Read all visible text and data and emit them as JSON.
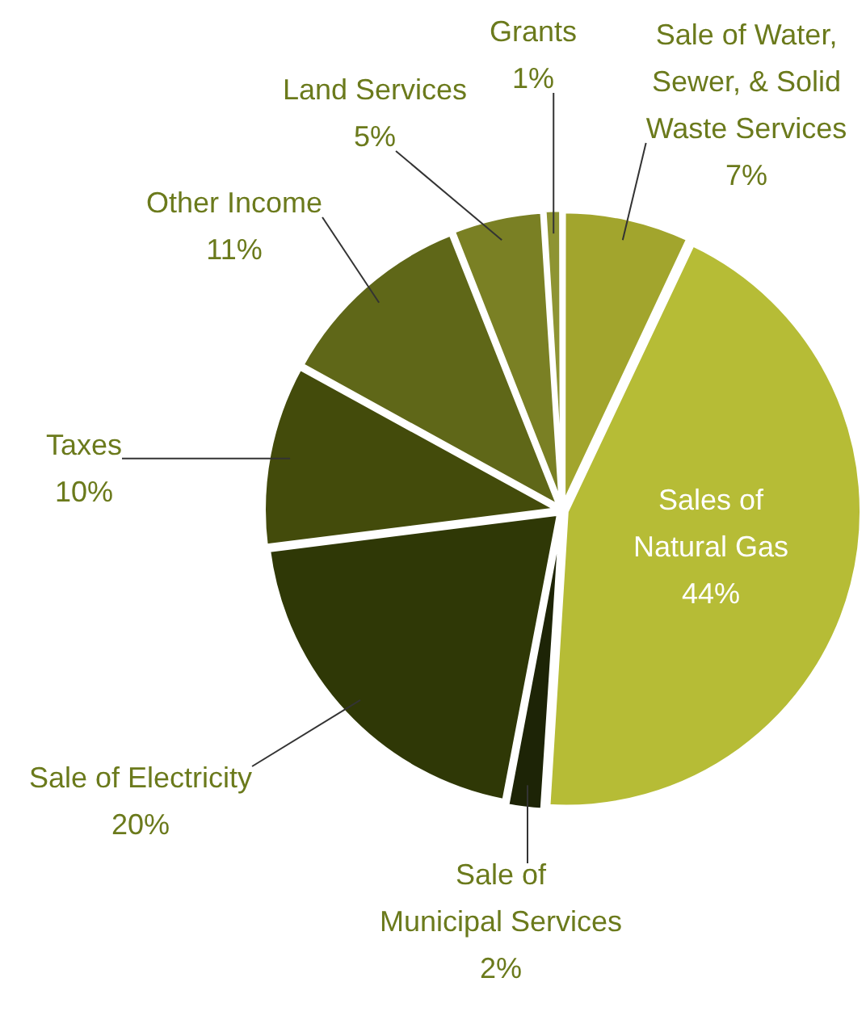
{
  "chart_data": {
    "type": "pie",
    "categories": [
      "Sale of Water, Sewer, & Solid Waste Services",
      "Sales of Natural Gas",
      "Sale of Municipal Services",
      "Sale of Electricity",
      "Taxes",
      "Other Income",
      "Land Services",
      "Grants"
    ],
    "values": [
      7,
      44,
      2,
      20,
      10,
      11,
      5,
      1
    ],
    "value_labels": [
      "7%",
      "44%",
      "2%",
      "20%",
      "10%",
      "11%",
      "5%",
      "1%"
    ],
    "colors": [
      "#a2a52d",
      "#b6bc36",
      "#1d2406",
      "#2f3806",
      "#434b0b",
      "#5f6718",
      "#7a8024",
      "#8e9432"
    ],
    "legend": false
  }
}
